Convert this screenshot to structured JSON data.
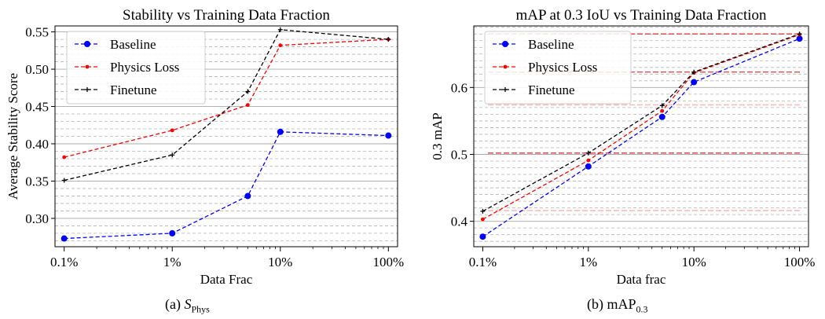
{
  "figure": {
    "captions": [
      {
        "label": "(a)",
        "math": "S",
        "sub": "Phys"
      },
      {
        "label": "(b) mAP",
        "math": "",
        "sub": "0.3"
      }
    ]
  },
  "chart_data": [
    {
      "type": "line",
      "title": "Stability vs Training Data Fraction",
      "xlabel": "Data Frac",
      "ylabel": "Average Stability Score",
      "x_scale": "log",
      "x": [
        0.001,
        0.01,
        0.05,
        0.1,
        1.0
      ],
      "xticks": [
        "0.1%",
        "1%",
        "10%",
        "100%"
      ],
      "xtick_values": [
        0.001,
        0.01,
        0.1,
        1.0
      ],
      "ylim": [
        0.262,
        0.558
      ],
      "yticks": [
        "0.30",
        "0.35",
        "0.40",
        "0.45",
        "0.50",
        "0.55"
      ],
      "ytick_values": [
        0.3,
        0.35,
        0.4,
        0.45,
        0.5,
        0.55
      ],
      "grid": true,
      "legend_position": "top-left",
      "series": [
        {
          "name": "Baseline",
          "color": "#0000ff",
          "marker": "circle",
          "values": [
            0.273,
            0.28,
            0.33,
            0.416,
            0.411
          ]
        },
        {
          "name": "Physics Loss",
          "color": "#ff0000",
          "marker": "dot",
          "values": [
            0.382,
            0.418,
            0.452,
            0.532,
            0.54
          ]
        },
        {
          "name": "Finetune",
          "color": "#000000",
          "marker": "plus",
          "values": [
            0.351,
            0.385,
            0.47,
            0.553,
            0.54
          ]
        }
      ]
    },
    {
      "type": "line",
      "title": "mAP at 0.3 IoU vs Training Data Fraction",
      "xlabel": "Data frac",
      "ylabel": "0.3 mAP",
      "x_scale": "log",
      "x": [
        0.001,
        0.01,
        0.05,
        0.1,
        1.0
      ],
      "xticks": [
        "0.1%",
        "1%",
        "10%",
        "100%"
      ],
      "xtick_values": [
        0.001,
        0.01,
        0.1,
        1.0
      ],
      "ylim": [
        0.362,
        0.692
      ],
      "yticks": [
        "0.4",
        "0.5",
        "0.6"
      ],
      "ytick_values": [
        0.4,
        0.5,
        0.6
      ],
      "grid": true,
      "legend_position": "top-left",
      "reference_lines": [
        {
          "color": "#ffaaaa",
          "values": [
            0.416,
            0.502,
            0.574,
            0.623,
            0.68
          ]
        },
        {
          "color": "#cc0000",
          "values": [
            0.502,
            0.623,
            0.68
          ]
        }
      ],
      "series": [
        {
          "name": "Baseline",
          "color": "#0000ff",
          "marker": "circle",
          "values": [
            0.377,
            0.482,
            0.556,
            0.608,
            0.673
          ]
        },
        {
          "name": "Physics Loss",
          "color": "#ff0000",
          "marker": "dot",
          "values": [
            0.403,
            0.491,
            0.565,
            0.622,
            0.679
          ]
        },
        {
          "name": "Finetune",
          "color": "#000000",
          "marker": "plus",
          "values": [
            0.415,
            0.502,
            0.573,
            0.623,
            0.68
          ]
        }
      ]
    }
  ]
}
